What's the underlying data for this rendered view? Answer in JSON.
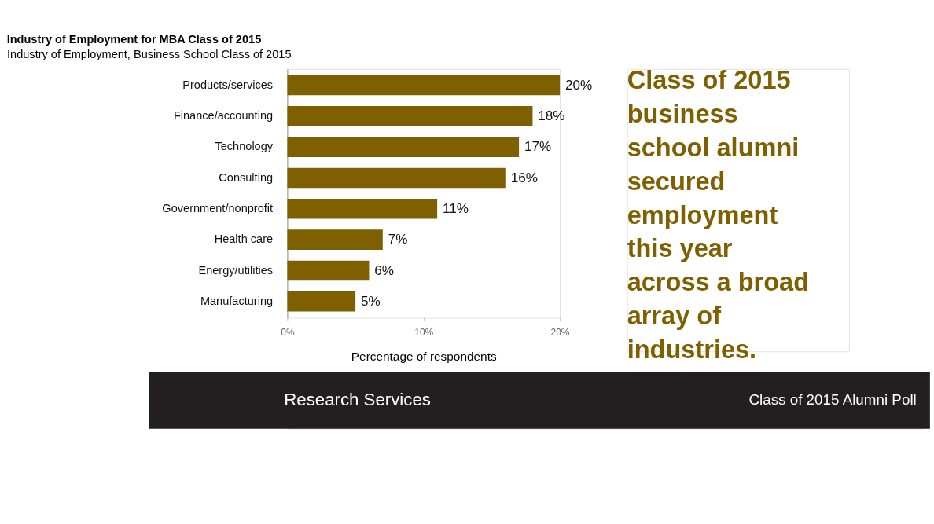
{
  "chart_data": {
    "type": "bar",
    "orientation": "horizontal",
    "title": "Industry of Employment for MBA Class of 2015",
    "subtitle": "Industry of Employment, Business School Class of 2015",
    "xlabel": "Percentage of respondents",
    "categories": [
      "Products/services",
      "Finance/accounting",
      "Technology",
      "Consulting",
      "Government/nonprofit",
      "Health care",
      "Energy/utilities",
      "Manufacturing"
    ],
    "values": [
      20,
      18,
      17,
      16,
      11,
      7,
      6,
      5
    ],
    "value_labels": [
      "20%",
      "18%",
      "17%",
      "16%",
      "11%",
      "7%",
      "6%",
      "5%"
    ],
    "color": "#7f6000",
    "xlim": [
      0,
      20
    ],
    "xticks": [
      {
        "value": 0,
        "label": "0%"
      },
      {
        "value": 10,
        "label": "10%"
      },
      {
        "value": 20,
        "label": "20%"
      }
    ],
    "grid": false,
    "annotations": [
      "Class of 2015 business school alumni secured employment this year across a broad array of industries.",
      "Research Services",
      "Class of 2015 Alumni Poll"
    ]
  }
}
